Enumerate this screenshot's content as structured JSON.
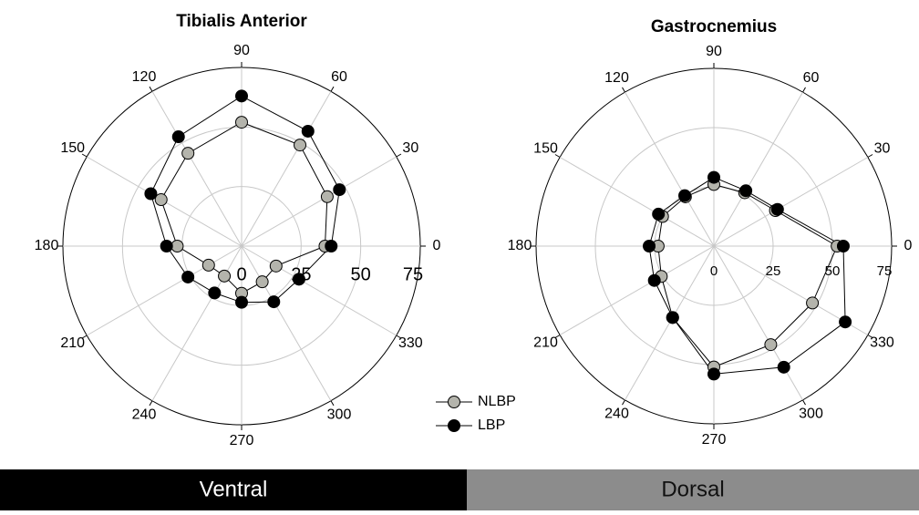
{
  "chart_data": [
    {
      "type": "polar",
      "title": "Tibialis Anterior",
      "theta": [
        0,
        30,
        60,
        90,
        120,
        150,
        180,
        210,
        240,
        270,
        300,
        330
      ],
      "thetaticks": [
        0,
        30,
        60,
        90,
        120,
        150,
        180,
        210,
        240,
        270,
        300,
        330
      ],
      "rlim": [
        0,
        75
      ],
      "rticks": [
        0,
        25,
        50,
        75
      ],
      "grid": true,
      "series": [
        {
          "color": "#b4b4ac",
          "values": [
            35,
            41.5,
            49,
            52,
            45,
            39,
            27,
            16,
            14.5,
            19.8,
            17.3,
            16.7
          ]
        },
        {
          "color": "#000000",
          "values": [
            37.6,
            47.4,
            55.7,
            63,
            53,
            44,
            31.5,
            26,
            22.7,
            23.6,
            27,
            27.8
          ]
        }
      ]
    },
    {
      "type": "polar",
      "title": "Gastrocnemius",
      "theta": [
        0,
        30,
        60,
        90,
        120,
        150,
        180,
        210,
        240,
        270,
        300,
        330
      ],
      "thetaticks": [
        0,
        30,
        60,
        90,
        120,
        150,
        180,
        210,
        240,
        270,
        300,
        330
      ],
      "rlim": [
        0,
        75
      ],
      "rticks": [
        0,
        25,
        50,
        75
      ],
      "grid": true,
      "series": [
        {
          "name": "NLBP",
          "color": "#b4b4ac",
          "values": [
            52,
            30,
            26,
            26,
            24,
            25,
            23.5,
            25.6,
            34.8,
            51,
            48,
            48
          ]
        },
        {
          "name": "LBP",
          "color": "#000000",
          "values": [
            54.6,
            31,
            27,
            29,
            24.6,
            27,
            27.3,
            29,
            34.8,
            54,
            59,
            64
          ]
        }
      ]
    }
  ],
  "panels": [
    "Ventral",
    "Dorsal"
  ]
}
